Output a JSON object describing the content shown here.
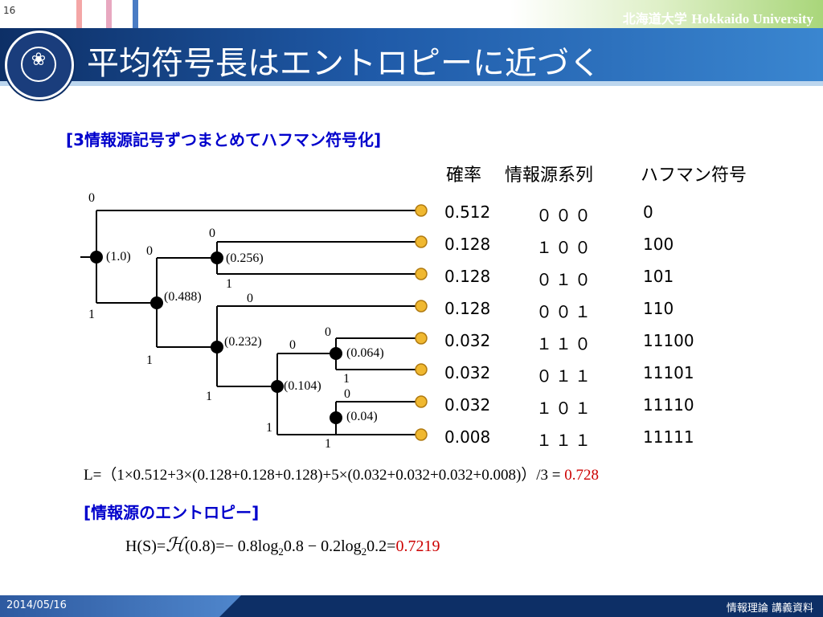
{
  "header": {
    "page_number": "16",
    "university_ja": "北海道大学",
    "university_en": "Hokkaido University",
    "title": "平均符号長はエントロピーに近づく",
    "accent_colors": [
      "#f4a6a6",
      "#e8a8c0",
      "#4a7cc4"
    ]
  },
  "section1": {
    "heading": "[3情報源記号ずつまとめてハフマン符号化]"
  },
  "table": {
    "headers": {
      "prob": "確率",
      "seq": "情報源系列",
      "code": "ハフマン符号"
    },
    "rows": [
      {
        "prob": "0.512",
        "seq": "０００",
        "code": "0"
      },
      {
        "prob": "0.128",
        "seq": "１００",
        "code": "100"
      },
      {
        "prob": "0.128",
        "seq": "０１０",
        "code": "101"
      },
      {
        "prob": "0.128",
        "seq": "００１",
        "code": "110"
      },
      {
        "prob": "0.032",
        "seq": "１１０",
        "code": "11100"
      },
      {
        "prob": "0.032",
        "seq": "０１１",
        "code": "11101"
      },
      {
        "prob": "0.032",
        "seq": "１０１",
        "code": "11110"
      },
      {
        "prob": "0.008",
        "seq": "１１１",
        "code": "11111"
      }
    ]
  },
  "tree": {
    "nodes": [
      "(1.0)",
      "(0.256)",
      "(0.488)",
      "(0.232)",
      "(0.064)",
      "(0.104)",
      "(0.04)"
    ],
    "bits": [
      "0",
      "1",
      "0",
      "0",
      "1",
      "0",
      "1",
      "0",
      "1",
      "0",
      "1",
      "0",
      "1",
      "1"
    ],
    "leaf_color": "#f0b830",
    "node_color": "#000000"
  },
  "formula_L": {
    "text": "L=（1×0.512+3×(0.128+0.128+0.128)+5×(0.032+0.032+0.032+0.008)）/3 = ",
    "result": "0.728"
  },
  "section2": {
    "heading": "[情報源のエントロピー]"
  },
  "formula_H": {
    "prefix": "H(S)=",
    "script_h": "ℋ",
    "arg": "(0.8)=− 0.8log",
    "sub1": "2",
    "mid": "0.8 − 0.2log",
    "sub2": "2",
    "tail": "0.2=",
    "result": "0.7219"
  },
  "footer": {
    "date": "2014/05/16",
    "course": "情報理論 講義資料"
  }
}
